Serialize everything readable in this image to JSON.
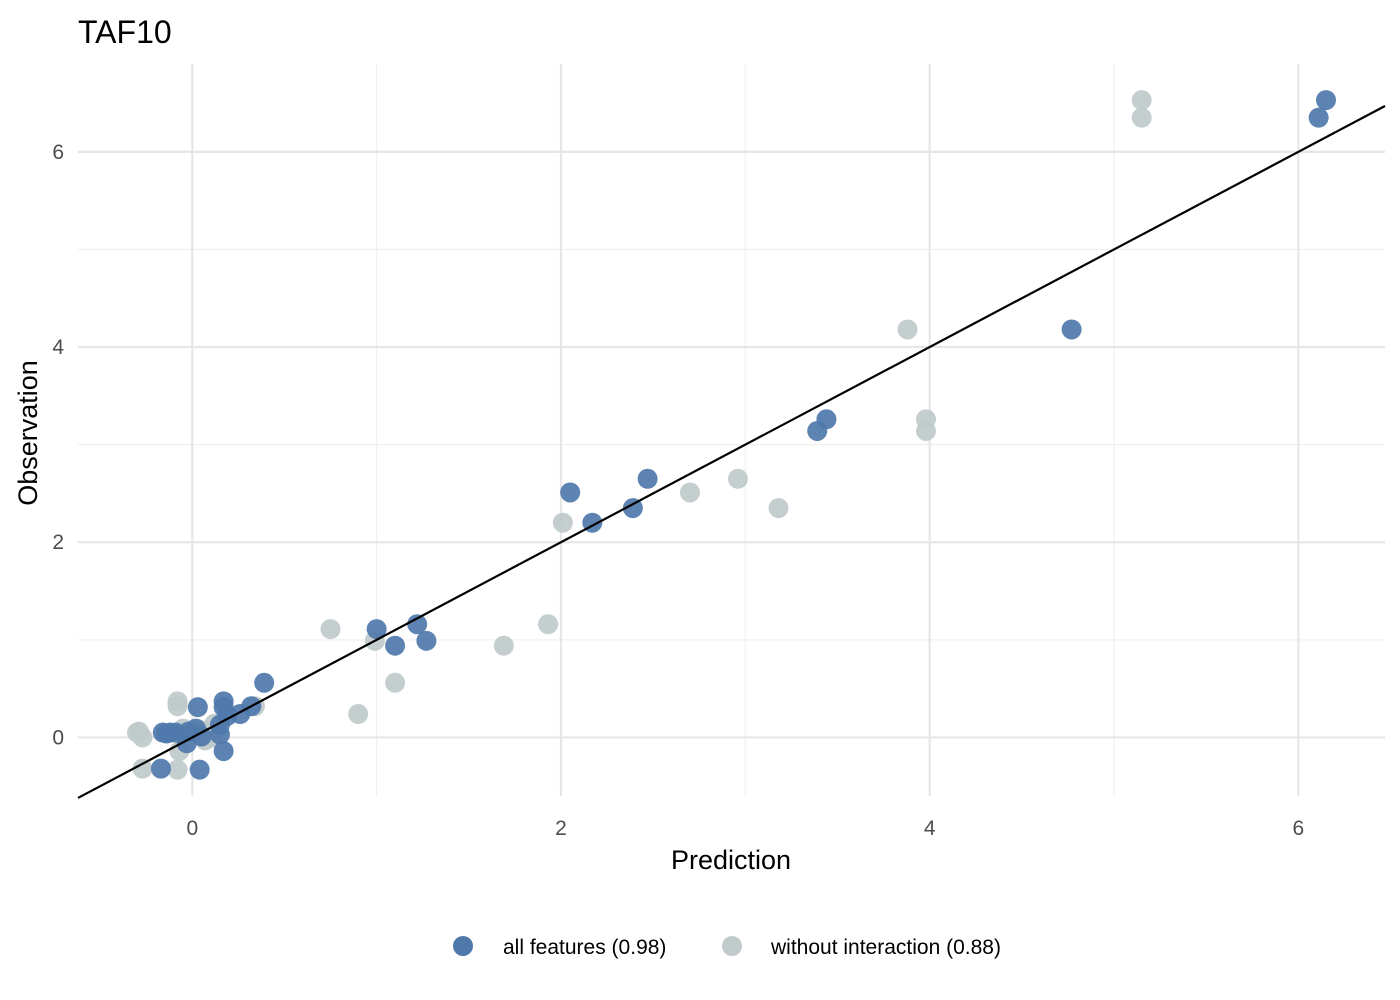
{
  "chart_data": {
    "type": "scatter",
    "title": "TAF10",
    "xlabel": "Prediction",
    "ylabel": "Observation",
    "xlim": [
      -0.62,
      6.47
    ],
    "ylim": [
      -0.6,
      6.9
    ],
    "x_ticks": [
      0,
      2,
      4,
      6
    ],
    "y_ticks": [
      0,
      2,
      4,
      6
    ],
    "x_tick_labels": [
      "0",
      "2",
      "4",
      "6"
    ],
    "y_tick_labels": [
      "0",
      "2",
      "4",
      "6"
    ],
    "grid": true,
    "legend_position": "bottom",
    "reference_line": {
      "slope": 1,
      "intercept": 0,
      "color": "#000000"
    },
    "series": [
      {
        "name": "all features (0.98)",
        "color": "#4f78ab",
        "points": [
          [
            6.15,
            6.53
          ],
          [
            6.11,
            6.35
          ],
          [
            4.77,
            4.18
          ],
          [
            3.44,
            3.26
          ],
          [
            3.39,
            3.14
          ],
          [
            2.47,
            2.65
          ],
          [
            2.39,
            2.35
          ],
          [
            2.17,
            2.2
          ],
          [
            2.05,
            2.51
          ],
          [
            1.27,
            0.99
          ],
          [
            1.22,
            1.16
          ],
          [
            1.1,
            0.94
          ],
          [
            1.0,
            1.11
          ],
          [
            0.39,
            0.56
          ],
          [
            0.32,
            0.32
          ],
          [
            0.26,
            0.24
          ],
          [
            0.19,
            0.22
          ],
          [
            0.17,
            0.37
          ],
          [
            0.17,
            0.31
          ],
          [
            0.15,
            0.13
          ],
          [
            0.15,
            0.03
          ],
          [
            0.17,
            -0.14
          ],
          [
            0.04,
            -0.33
          ],
          [
            0.03,
            0.31
          ],
          [
            0.02,
            0.09
          ],
          [
            0.05,
            0.01
          ],
          [
            -0.02,
            0.06
          ],
          [
            -0.03,
            -0.06
          ],
          [
            -0.09,
            0.05
          ],
          [
            -0.12,
            0.05
          ],
          [
            -0.16,
            0.05
          ],
          [
            -0.17,
            -0.32
          ],
          [
            -0.14,
            0.04
          ]
        ]
      },
      {
        "name": "without interaction (0.88)",
        "color": "#bfcaca",
        "points": [
          [
            5.15,
            6.53
          ],
          [
            5.15,
            6.35
          ],
          [
            3.88,
            4.18
          ],
          [
            3.98,
            3.26
          ],
          [
            3.98,
            3.14
          ],
          [
            3.18,
            2.35
          ],
          [
            2.96,
            2.65
          ],
          [
            2.7,
            2.51
          ],
          [
            2.01,
            2.2
          ],
          [
            1.93,
            1.16
          ],
          [
            1.69,
            0.94
          ],
          [
            1.1,
            0.56
          ],
          [
            0.99,
            0.99
          ],
          [
            0.75,
            1.11
          ],
          [
            0.9,
            0.24
          ],
          [
            0.34,
            0.32
          ],
          [
            0.12,
            0.14
          ],
          [
            0.11,
            0.0
          ],
          [
            -0.08,
            0.37
          ],
          [
            -0.08,
            0.32
          ],
          [
            -0.08,
            -0.33
          ],
          [
            -0.07,
            -0.14
          ],
          [
            -0.27,
            -0.32
          ],
          [
            -0.27,
            0.0
          ],
          [
            -0.29,
            0.06
          ],
          [
            -0.3,
            0.05
          ],
          [
            -0.05,
            0.09
          ],
          [
            0.07,
            -0.03
          ],
          [
            0.06,
            0.07
          ]
        ]
      }
    ]
  }
}
